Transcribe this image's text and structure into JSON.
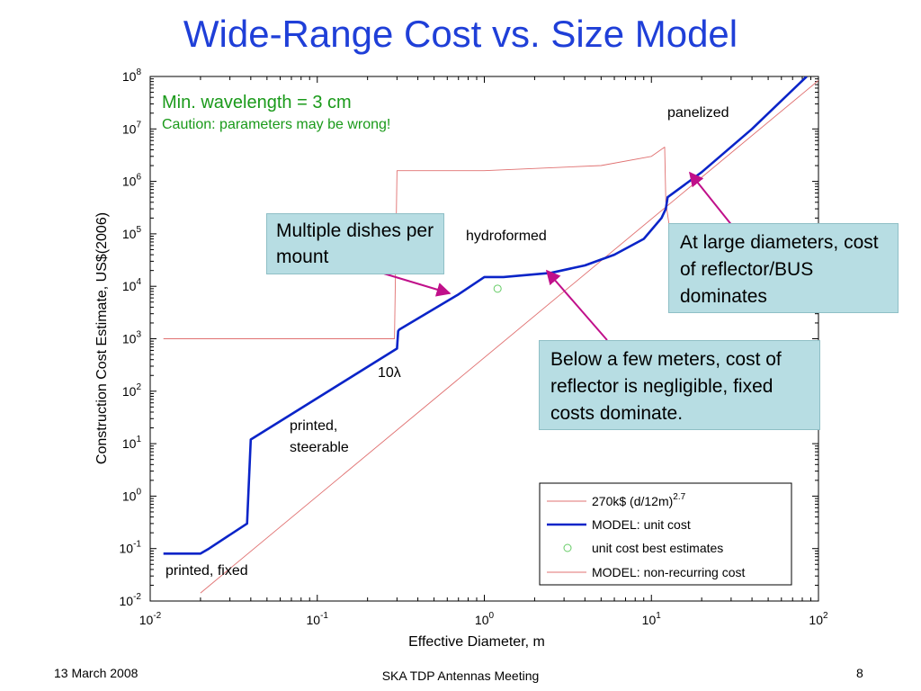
{
  "slide": {
    "title": "Wide-Range Cost vs. Size Model",
    "footer_left": "13 March 2008",
    "footer_center": "SKA TDP Antennas Meeting",
    "footer_right": "8"
  },
  "chart_data": {
    "type": "line",
    "xlabel": "Effective Diameter, m",
    "ylabel": "Construction Cost Estimate, US$(2006)",
    "xscale": "log",
    "yscale": "log",
    "xlim": [
      0.01,
      100
    ],
    "ylim": [
      0.01,
      100000000
    ],
    "x_ticks": [
      {
        "base": "10",
        "exp": "-2",
        "value": 0.01
      },
      {
        "base": "10",
        "exp": "-1",
        "value": 0.1
      },
      {
        "base": "10",
        "exp": "0",
        "value": 1
      },
      {
        "base": "10",
        "exp": "1",
        "value": 10
      },
      {
        "base": "10",
        "exp": "2",
        "value": 100
      }
    ],
    "y_ticks": [
      {
        "base": "10",
        "exp": "-2",
        "value": 0.01
      },
      {
        "base": "10",
        "exp": "-1",
        "value": 0.1
      },
      {
        "base": "10",
        "exp": "0",
        "value": 1
      },
      {
        "base": "10",
        "exp": "1",
        "value": 10
      },
      {
        "base": "10",
        "exp": "2",
        "value": 100
      },
      {
        "base": "10",
        "exp": "3",
        "value": 1000
      },
      {
        "base": "10",
        "exp": "4",
        "value": 10000
      },
      {
        "base": "10",
        "exp": "5",
        "value": 100000
      },
      {
        "base": "10",
        "exp": "6",
        "value": 1000000
      },
      {
        "base": "10",
        "exp": "7",
        "value": 10000000
      },
      {
        "base": "10",
        "exp": "8",
        "value": 100000000
      }
    ],
    "series": [
      {
        "name": "270k$ (d/12m)",
        "name_sup": "2.7",
        "color": "#e07070",
        "style": "thin",
        "x": [
          0.02,
          100
        ],
        "y": [
          0.0142,
          84000000
        ]
      },
      {
        "name": "MODEL:  unit cost",
        "color": "#0a24c8",
        "style": "thick",
        "x": [
          0.012,
          0.02,
          0.0225,
          0.038,
          0.04,
          0.3,
          0.305,
          0.31,
          0.7,
          1.0,
          1.3,
          2.5,
          4,
          6,
          9,
          11.5,
          12.2,
          12.5,
          20,
          40,
          85
        ],
        "y": [
          0.08,
          0.08,
          0.1,
          0.3,
          12,
          650,
          1400,
          1500,
          7000,
          15000,
          15000,
          18000,
          25000,
          40000,
          80000,
          200000,
          300000,
          500000,
          1500000,
          10000000,
          100000000
        ]
      },
      {
        "name": "unit cost best estimates",
        "color": "#66cc66",
        "style": "marker",
        "x": [
          1.2
        ],
        "y": [
          9000
        ]
      },
      {
        "name": "MODEL:  non-recurring cost",
        "color": "#e07070",
        "style": "thin",
        "x": [
          0.012,
          0.29,
          0.3,
          1,
          5,
          10,
          12,
          12.2,
          13,
          20,
          35
        ],
        "y": [
          1000,
          1000,
          1600000,
          1600000,
          2000000,
          3000000,
          4500000,
          400000,
          100000,
          100000,
          100000
        ]
      }
    ],
    "annotations": {
      "min_wavelength": "Min. wavelength = 3 cm",
      "caution": "Caution:  parameters may be wrong!",
      "panelized": "panelized",
      "hydroformed": "hydroformed",
      "ten_lambda": "10λ",
      "printed_steerable_1": "printed,",
      "printed_steerable_2": "steerable",
      "printed_fixed": "printed, fixed"
    },
    "callouts": {
      "multiple_dishes": "Multiple dishes per mount",
      "large_diameters": "At large diameters, cost of reflector/BUS dominates",
      "below_few_meters": "Below a few meters, cost of reflector is negligible, fixed costs dominate."
    },
    "legend_position": "bottom-right",
    "grid": false
  }
}
